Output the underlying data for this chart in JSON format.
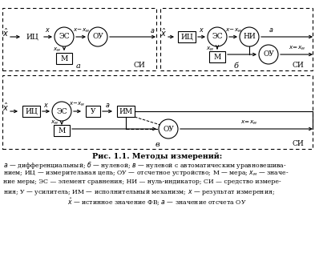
{
  "bg_color": "#ffffff",
  "title": "Рис. 1.1. Методы измерений:",
  "diagrams": {
    "a": {
      "label": "а"
    },
    "b": {
      "label": "б"
    },
    "v": {
      "label": "в"
    }
  }
}
